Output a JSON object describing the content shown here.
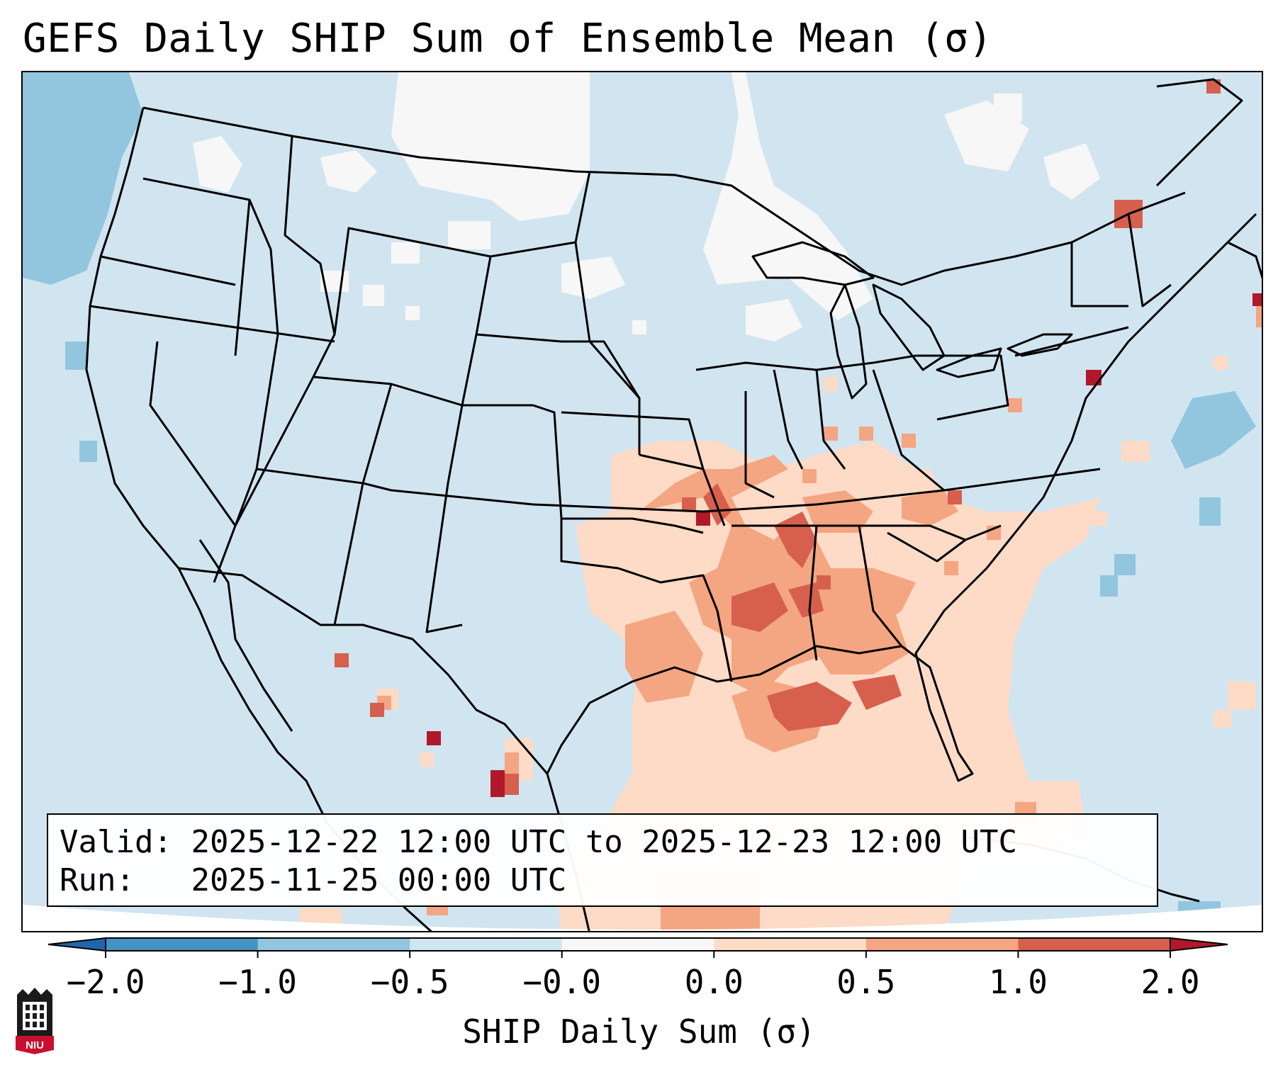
{
  "title": "GEFS Daily SHIP Sum of Ensemble Mean (σ)",
  "info_box": {
    "valid_label": "Valid:",
    "valid_value": "2025-12-22 12:00 UTC to 2025-12-23 12:00 UTC",
    "run_label": "Run:",
    "run_value": "2025-11-25 00:00 UTC"
  },
  "colorbar": {
    "label": "SHIP Daily Sum (σ)",
    "tick_labels": [
      "−2.0",
      "−1.0",
      "−0.5",
      "−0.0",
      "0.0",
      "0.5",
      "1.0",
      "2.0"
    ],
    "bin_colors": [
      "#2166ac",
      "#4393c3",
      "#92c5de",
      "#d1e5f0",
      "#f7f7f7",
      "#fddbc7",
      "#f4a582",
      "#d6604d",
      "#b2182b"
    ]
  },
  "map": {
    "background_value_color": "#d1e5f0",
    "positive_anomaly_region": "Southern Plains, Lower Mississippi Valley, Gulf Coast",
    "logo": "niu-logo"
  }
}
